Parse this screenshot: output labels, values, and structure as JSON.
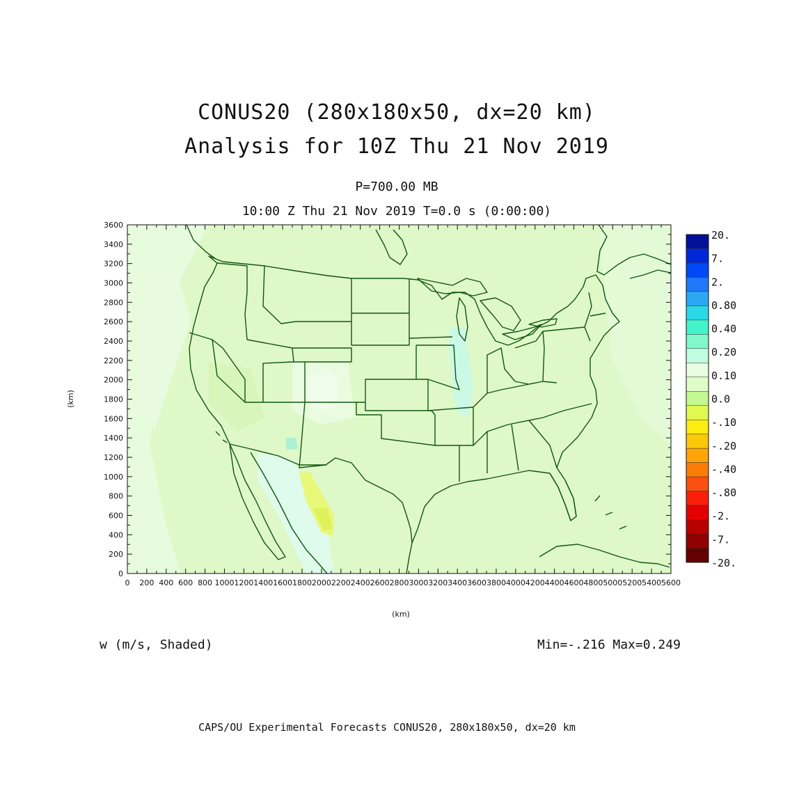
{
  "title": {
    "line1": "CONUS20 (280x180x50, dx=20 km)",
    "line2": "Analysis for 10Z Thu 21 Nov 2019"
  },
  "subtitle": {
    "level": "P=700.00 MB",
    "time": "10:00 Z Thu 21 Nov 2019   T=0.0 s (0:00:00)"
  },
  "axes": {
    "xlabel": "(km)",
    "ylabel": "(km)",
    "xlim": [
      0,
      5600
    ],
    "ylim": [
      0,
      3600
    ],
    "x_ticks": [
      "0",
      "200",
      "400",
      "600",
      "800",
      "1000",
      "1200",
      "1400",
      "1600",
      "1800",
      "2000",
      "2200",
      "2400",
      "2600",
      "2800",
      "3000",
      "3200",
      "3400",
      "3600",
      "3800",
      "4000",
      "4200",
      "4400",
      "4600",
      "4800",
      "5000",
      "5200",
      "5400",
      "5600"
    ],
    "y_ticks": [
      "0",
      "200",
      "400",
      "600",
      "800",
      "1000",
      "1200",
      "1400",
      "1600",
      "1800",
      "2000",
      "2200",
      "2400",
      "2600",
      "2800",
      "3000",
      "3200",
      "3400",
      "3600"
    ]
  },
  "field": {
    "label": "w (m/s, Shaded)",
    "minmax": "Min=-.216  Max=0.249"
  },
  "colorbar": {
    "labels": [
      "20.",
      "7.",
      "2.",
      "0.80",
      "0.40",
      "0.20",
      "0.10",
      "0.0",
      "-.10",
      "-.20",
      "-.40",
      "-.80",
      "-2.",
      "-7.",
      "-20."
    ],
    "colors": [
      "#00109a",
      "#0028d8",
      "#0048f8",
      "#1e78f8",
      "#2aa8f4",
      "#2ad8e8",
      "#44f4cc",
      "#80f8cc",
      "#c0fce0",
      "#e8fce0",
      "#e0fcc8",
      "#c4f890",
      "#e0f850",
      "#fcec10",
      "#fcc808",
      "#fca408",
      "#fc7c08",
      "#fc5010",
      "#f82008",
      "#e40000",
      "#b80000",
      "#900000",
      "#640000"
    ],
    "labelled_boundaries": [
      0,
      2,
      4,
      6,
      8,
      10,
      12,
      14,
      16,
      18,
      20,
      22,
      23,
      23
    ]
  },
  "map": {
    "background": "#dff8c8",
    "border_color": "#115511"
  },
  "credit": "CAPS/OU Experimental Forecasts  CONUS20, 280x180x50, dx=20 km"
}
